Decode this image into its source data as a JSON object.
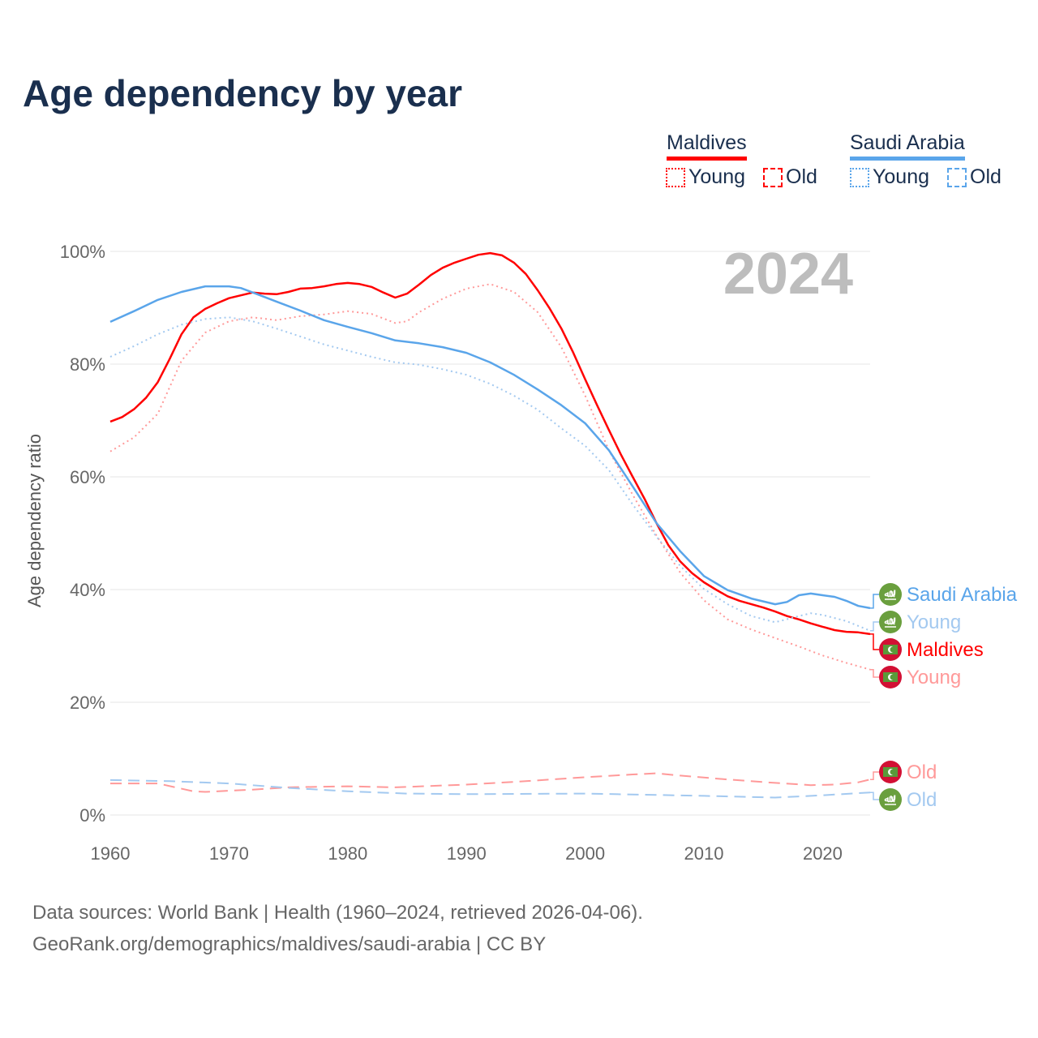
{
  "title": "Age dependency by year",
  "legend": {
    "groups": [
      {
        "country": "Maldives",
        "color": "#ff0000",
        "items": [
          "Young",
          "Old"
        ]
      },
      {
        "country": "Saudi Arabia",
        "color": "#5aa5ea",
        "items": [
          "Young",
          "Old"
        ]
      }
    ]
  },
  "year_watermark": "2024",
  "footer": {
    "line1": "Data sources: World Bank | Health (1960–2024, retrieved 2026-04-06).",
    "line2": "GeoRank.org/demographics/maldives/saudi-arabia | CC BY"
  },
  "chart_data": {
    "type": "line",
    "title": "Age dependency by year",
    "xlabel": "",
    "ylabel": "Age dependency ratio",
    "xlim": [
      1960,
      2024
    ],
    "ylim": [
      0,
      100
    ],
    "x_ticks": [
      1960,
      1970,
      1980,
      1990,
      2000,
      2010,
      2020
    ],
    "y_ticks": [
      "0%",
      "20%",
      "40%",
      "60%",
      "80%",
      "100%"
    ],
    "grid": true,
    "series": [
      {
        "name": "Maldives",
        "end_label": "Maldives",
        "country": "Maldives",
        "style": "solid",
        "color": "#ff0000",
        "points": [
          [
            1960,
            69.8
          ],
          [
            1961,
            70.6
          ],
          [
            1962,
            72
          ],
          [
            1963,
            74
          ],
          [
            1964,
            76.8
          ],
          [
            1965,
            80.9
          ],
          [
            1966,
            85.3
          ],
          [
            1967,
            88.3
          ],
          [
            1968,
            89.8
          ],
          [
            1969,
            90.8
          ],
          [
            1970,
            91.7
          ],
          [
            1971,
            92.2
          ],
          [
            1972,
            92.7
          ],
          [
            1973,
            92.5
          ],
          [
            1974,
            92.4
          ],
          [
            1975,
            92.8
          ],
          [
            1976,
            93.4
          ],
          [
            1977,
            93.5
          ],
          [
            1978,
            93.8
          ],
          [
            1979,
            94.2
          ],
          [
            1980,
            94.4
          ],
          [
            1981,
            94.2
          ],
          [
            1982,
            93.7
          ],
          [
            1983,
            92.7
          ],
          [
            1984,
            91.8
          ],
          [
            1985,
            92.5
          ],
          [
            1986,
            94.1
          ],
          [
            1987,
            95.8
          ],
          [
            1988,
            97.1
          ],
          [
            1989,
            98
          ],
          [
            1990,
            98.7
          ],
          [
            1991,
            99.4
          ],
          [
            1992,
            99.7
          ],
          [
            1993,
            99.3
          ],
          [
            1994,
            98
          ],
          [
            1995,
            96
          ],
          [
            1996,
            93.1
          ],
          [
            1997,
            89.9
          ],
          [
            1998,
            86.3
          ],
          [
            1999,
            82
          ],
          [
            2000,
            77.3
          ],
          [
            2001,
            72.7
          ],
          [
            2002,
            68.3
          ],
          [
            2003,
            64
          ],
          [
            2004,
            60
          ],
          [
            2005,
            56.1
          ],
          [
            2006,
            51.8
          ],
          [
            2007,
            47.9
          ],
          [
            2008,
            45
          ],
          [
            2009,
            42.9
          ],
          [
            2010,
            41.3
          ],
          [
            2011,
            40
          ],
          [
            2012,
            38.8
          ],
          [
            2013,
            38
          ],
          [
            2014,
            37.4
          ],
          [
            2015,
            36.8
          ],
          [
            2016,
            36.1
          ],
          [
            2017,
            35.3
          ],
          [
            2018,
            34.7
          ],
          [
            2019,
            34
          ],
          [
            2020,
            33.4
          ],
          [
            2021,
            32.8
          ],
          [
            2022,
            32.5
          ],
          [
            2023,
            32.4
          ],
          [
            2024,
            32.1
          ]
        ]
      },
      {
        "name": "Maldives Young",
        "end_label": "Young",
        "country": "Maldives",
        "style": "dotted",
        "color": "#ff9999",
        "points": [
          [
            1960,
            64.5
          ],
          [
            1962,
            67
          ],
          [
            1964,
            71.2
          ],
          [
            1966,
            80.6
          ],
          [
            1968,
            85.6
          ],
          [
            1970,
            87.6
          ],
          [
            1972,
            88.3
          ],
          [
            1974,
            87.8
          ],
          [
            1976,
            88.5
          ],
          [
            1978,
            88.8
          ],
          [
            1980,
            89.4
          ],
          [
            1982,
            88.9
          ],
          [
            1984,
            87.3
          ],
          [
            1985,
            87.6
          ],
          [
            1986,
            89.2
          ],
          [
            1988,
            91.6
          ],
          [
            1990,
            93.4
          ],
          [
            1992,
            94.2
          ],
          [
            1994,
            92.8
          ],
          [
            1996,
            89.2
          ],
          [
            1998,
            83
          ],
          [
            2000,
            74.4
          ],
          [
            2002,
            64.7
          ],
          [
            2004,
            56.8
          ],
          [
            2006,
            49.6
          ],
          [
            2008,
            43
          ],
          [
            2010,
            38.1
          ],
          [
            2012,
            34.7
          ],
          [
            2014,
            32.9
          ],
          [
            2016,
            31.4
          ],
          [
            2018,
            29.9
          ],
          [
            2020,
            28.3
          ],
          [
            2022,
            27
          ],
          [
            2024,
            25.8
          ]
        ]
      },
      {
        "name": "Maldives Old",
        "end_label": "Old",
        "country": "Maldives",
        "style": "dashed",
        "color": "#ff9999",
        "points": [
          [
            1960,
            5.6
          ],
          [
            1964,
            5.6
          ],
          [
            1967,
            4.2
          ],
          [
            1968,
            4.1
          ],
          [
            1972,
            4.5
          ],
          [
            1975,
            4.9
          ],
          [
            1980,
            5.1
          ],
          [
            1984,
            4.9
          ],
          [
            1990,
            5.4
          ],
          [
            1995,
            6.0
          ],
          [
            2000,
            6.7
          ],
          [
            2004,
            7.2
          ],
          [
            2006,
            7.4
          ],
          [
            2008,
            7.0
          ],
          [
            2012,
            6.3
          ],
          [
            2016,
            5.7
          ],
          [
            2019,
            5.3
          ],
          [
            2021,
            5.4
          ],
          [
            2023,
            5.8
          ],
          [
            2024,
            6.3
          ]
        ]
      },
      {
        "name": "Saudi Arabia",
        "end_label": "Saudi Arabia",
        "country": "Saudi Arabia",
        "style": "solid",
        "color": "#5aa5ea",
        "points": [
          [
            1960,
            87.5
          ],
          [
            1962,
            89.4
          ],
          [
            1964,
            91.4
          ],
          [
            1966,
            92.8
          ],
          [
            1968,
            93.8
          ],
          [
            1970,
            93.8
          ],
          [
            1971,
            93.5
          ],
          [
            1972,
            92.7
          ],
          [
            1974,
            91.1
          ],
          [
            1976,
            89.5
          ],
          [
            1978,
            87.8
          ],
          [
            1980,
            86.6
          ],
          [
            1982,
            85.5
          ],
          [
            1984,
            84.2
          ],
          [
            1986,
            83.7
          ],
          [
            1988,
            83
          ],
          [
            1990,
            82
          ],
          [
            1992,
            80.3
          ],
          [
            1994,
            78.1
          ],
          [
            1996,
            75.5
          ],
          [
            1998,
            72.7
          ],
          [
            2000,
            69.5
          ],
          [
            2002,
            64.7
          ],
          [
            2004,
            58.3
          ],
          [
            2006,
            51.8
          ],
          [
            2008,
            46.8
          ],
          [
            2010,
            42.4
          ],
          [
            2012,
            39.9
          ],
          [
            2014,
            38.4
          ],
          [
            2016,
            37.4
          ],
          [
            2017,
            37.8
          ],
          [
            2018,
            39
          ],
          [
            2019,
            39.3
          ],
          [
            2020,
            39
          ],
          [
            2021,
            38.7
          ],
          [
            2022,
            38
          ],
          [
            2023,
            37.1
          ],
          [
            2024,
            36.7
          ]
        ]
      },
      {
        "name": "Saudi Arabia Young",
        "end_label": "Young",
        "country": "Saudi Arabia",
        "style": "dotted",
        "color": "#a3c9f0",
        "points": [
          [
            1960,
            81.3
          ],
          [
            1962,
            83.2
          ],
          [
            1964,
            85.3
          ],
          [
            1966,
            87
          ],
          [
            1968,
            88
          ],
          [
            1970,
            88.3
          ],
          [
            1972,
            87.6
          ],
          [
            1974,
            86.3
          ],
          [
            1976,
            84.9
          ],
          [
            1978,
            83.5
          ],
          [
            1980,
            82.4
          ],
          [
            1982,
            81.3
          ],
          [
            1984,
            80.3
          ],
          [
            1986,
            79.9
          ],
          [
            1988,
            79.1
          ],
          [
            1990,
            78.1
          ],
          [
            1992,
            76.5
          ],
          [
            1994,
            74.4
          ],
          [
            1996,
            71.9
          ],
          [
            1998,
            68.6
          ],
          [
            2000,
            65.5
          ],
          [
            2002,
            61.2
          ],
          [
            2004,
            55.1
          ],
          [
            2006,
            49.4
          ],
          [
            2008,
            44.2
          ],
          [
            2010,
            40.1
          ],
          [
            2012,
            37.4
          ],
          [
            2014,
            35.3
          ],
          [
            2016,
            34.2
          ],
          [
            2018,
            35.3
          ],
          [
            2019,
            35.8
          ],
          [
            2020,
            35.5
          ],
          [
            2022,
            34.4
          ],
          [
            2024,
            32.7
          ]
        ]
      },
      {
        "name": "Saudi Arabia Old",
        "end_label": "Old",
        "country": "Saudi Arabia",
        "style": "dashed",
        "color": "#a3c9f0",
        "points": [
          [
            1960,
            6.2
          ],
          [
            1965,
            6.0
          ],
          [
            1970,
            5.6
          ],
          [
            1975,
            4.8
          ],
          [
            1980,
            4.2
          ],
          [
            1985,
            3.8
          ],
          [
            1990,
            3.7
          ],
          [
            2000,
            3.8
          ],
          [
            2005,
            3.6
          ],
          [
            2010,
            3.4
          ],
          [
            2016,
            3.1
          ],
          [
            2020,
            3.5
          ],
          [
            2024,
            4.0
          ]
        ]
      }
    ]
  }
}
